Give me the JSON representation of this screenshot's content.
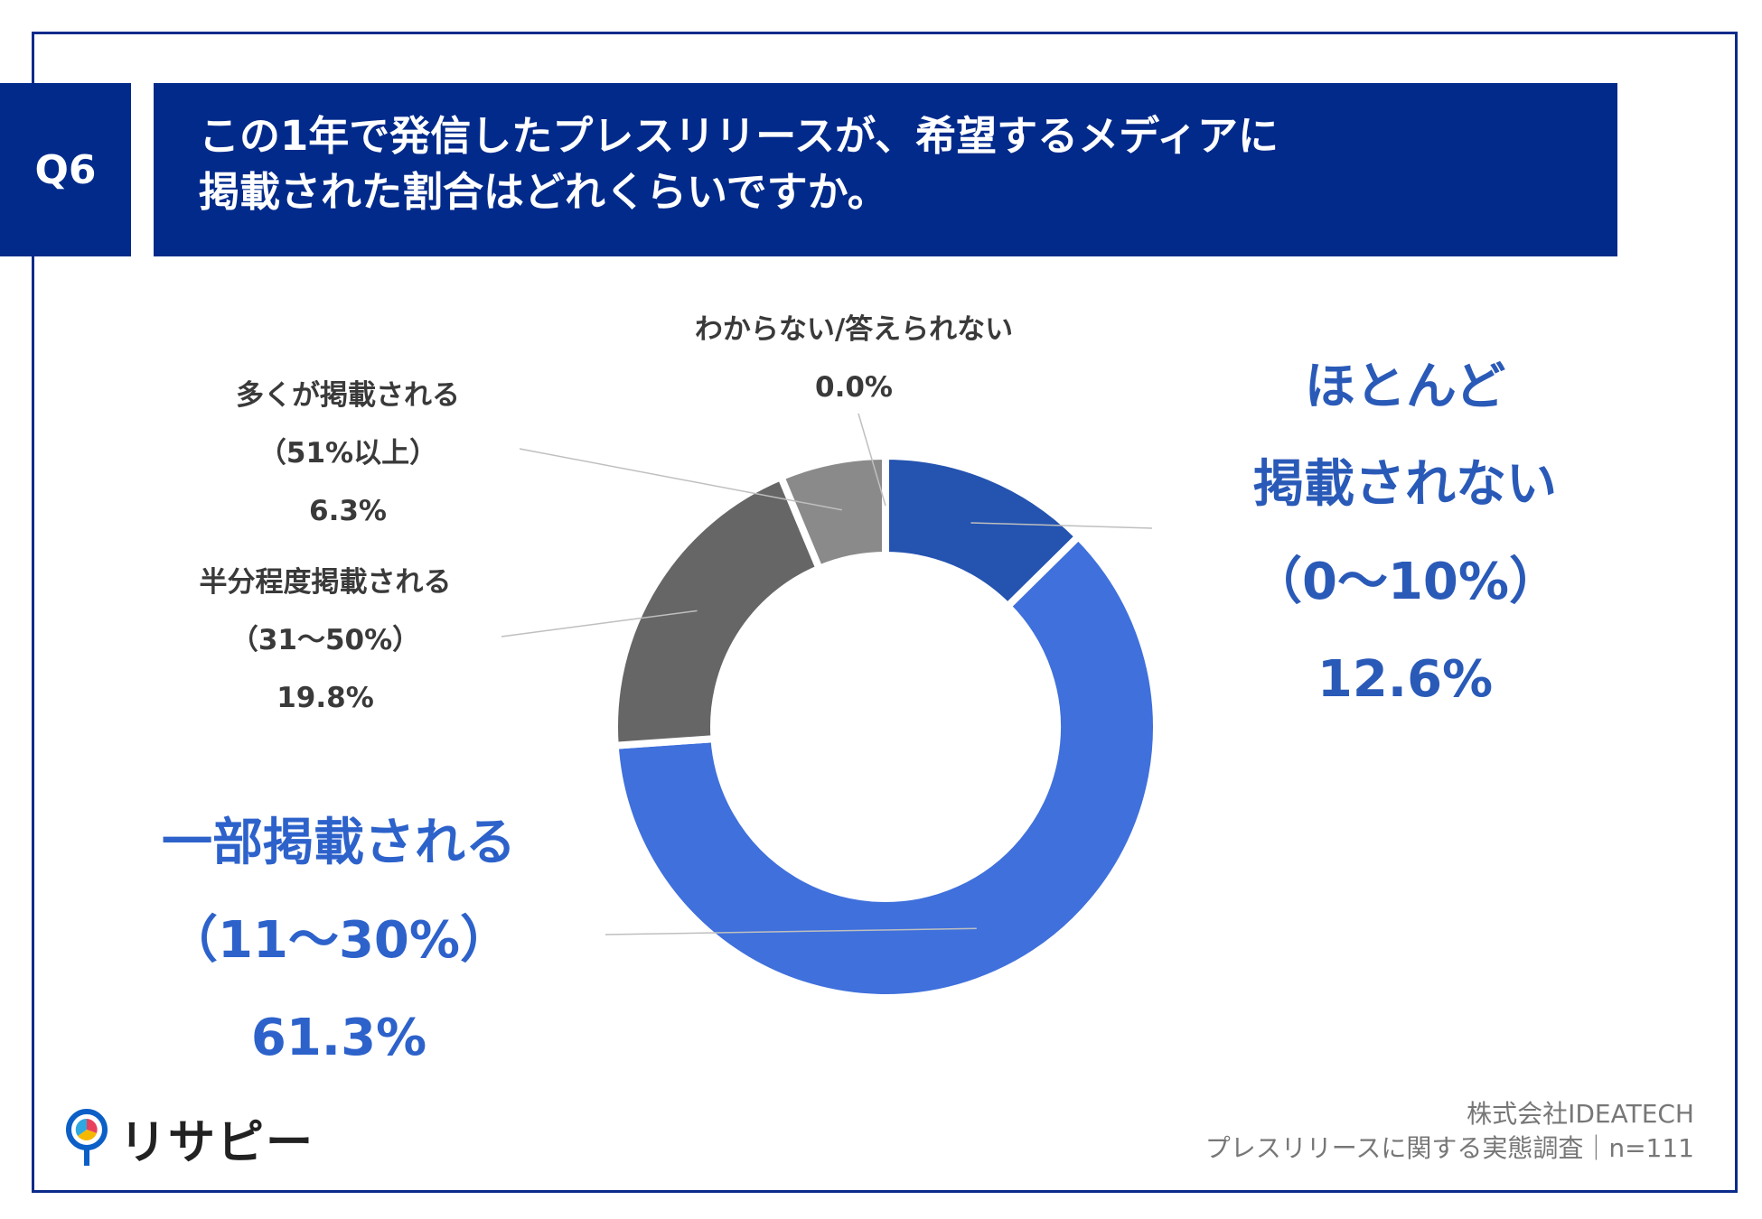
{
  "header": {
    "badge": "Q6",
    "title_line1": "この1年で発信したプレスリリースが、希望するメディアに",
    "title_line2": "掲載された割合はどれくらいですか。"
  },
  "chart_data": {
    "type": "pie",
    "donut": true,
    "segments": [
      {
        "label_lines": [
          "ほとんど",
          "掲載されない",
          "（0〜10%）"
        ],
        "value": 12.6,
        "value_label": "12.6%",
        "color": "#2453b0"
      },
      {
        "label_lines": [
          "一部掲載される",
          "（11〜30%）"
        ],
        "value": 61.3,
        "value_label": "61.3%",
        "color": "#3f70dc"
      },
      {
        "label_lines": [
          "半分程度掲載される",
          "（31〜50%）"
        ],
        "value": 19.8,
        "value_label": "19.8%",
        "color": "#666666"
      },
      {
        "label_lines": [
          "多くが掲載される",
          "（51%以上）"
        ],
        "value": 6.3,
        "value_label": "6.3%",
        "color": "#8a8a8a"
      },
      {
        "label_lines": [
          "わからない/答えられない"
        ],
        "value": 0.0,
        "value_label": "0.0%",
        "color": "#bdbdbd"
      }
    ]
  },
  "footer": {
    "logo_text": "リサピー",
    "source_line1": "株式会社IDEATECH",
    "source_line2": "プレスリリースに関する実態調査｜n=111"
  }
}
